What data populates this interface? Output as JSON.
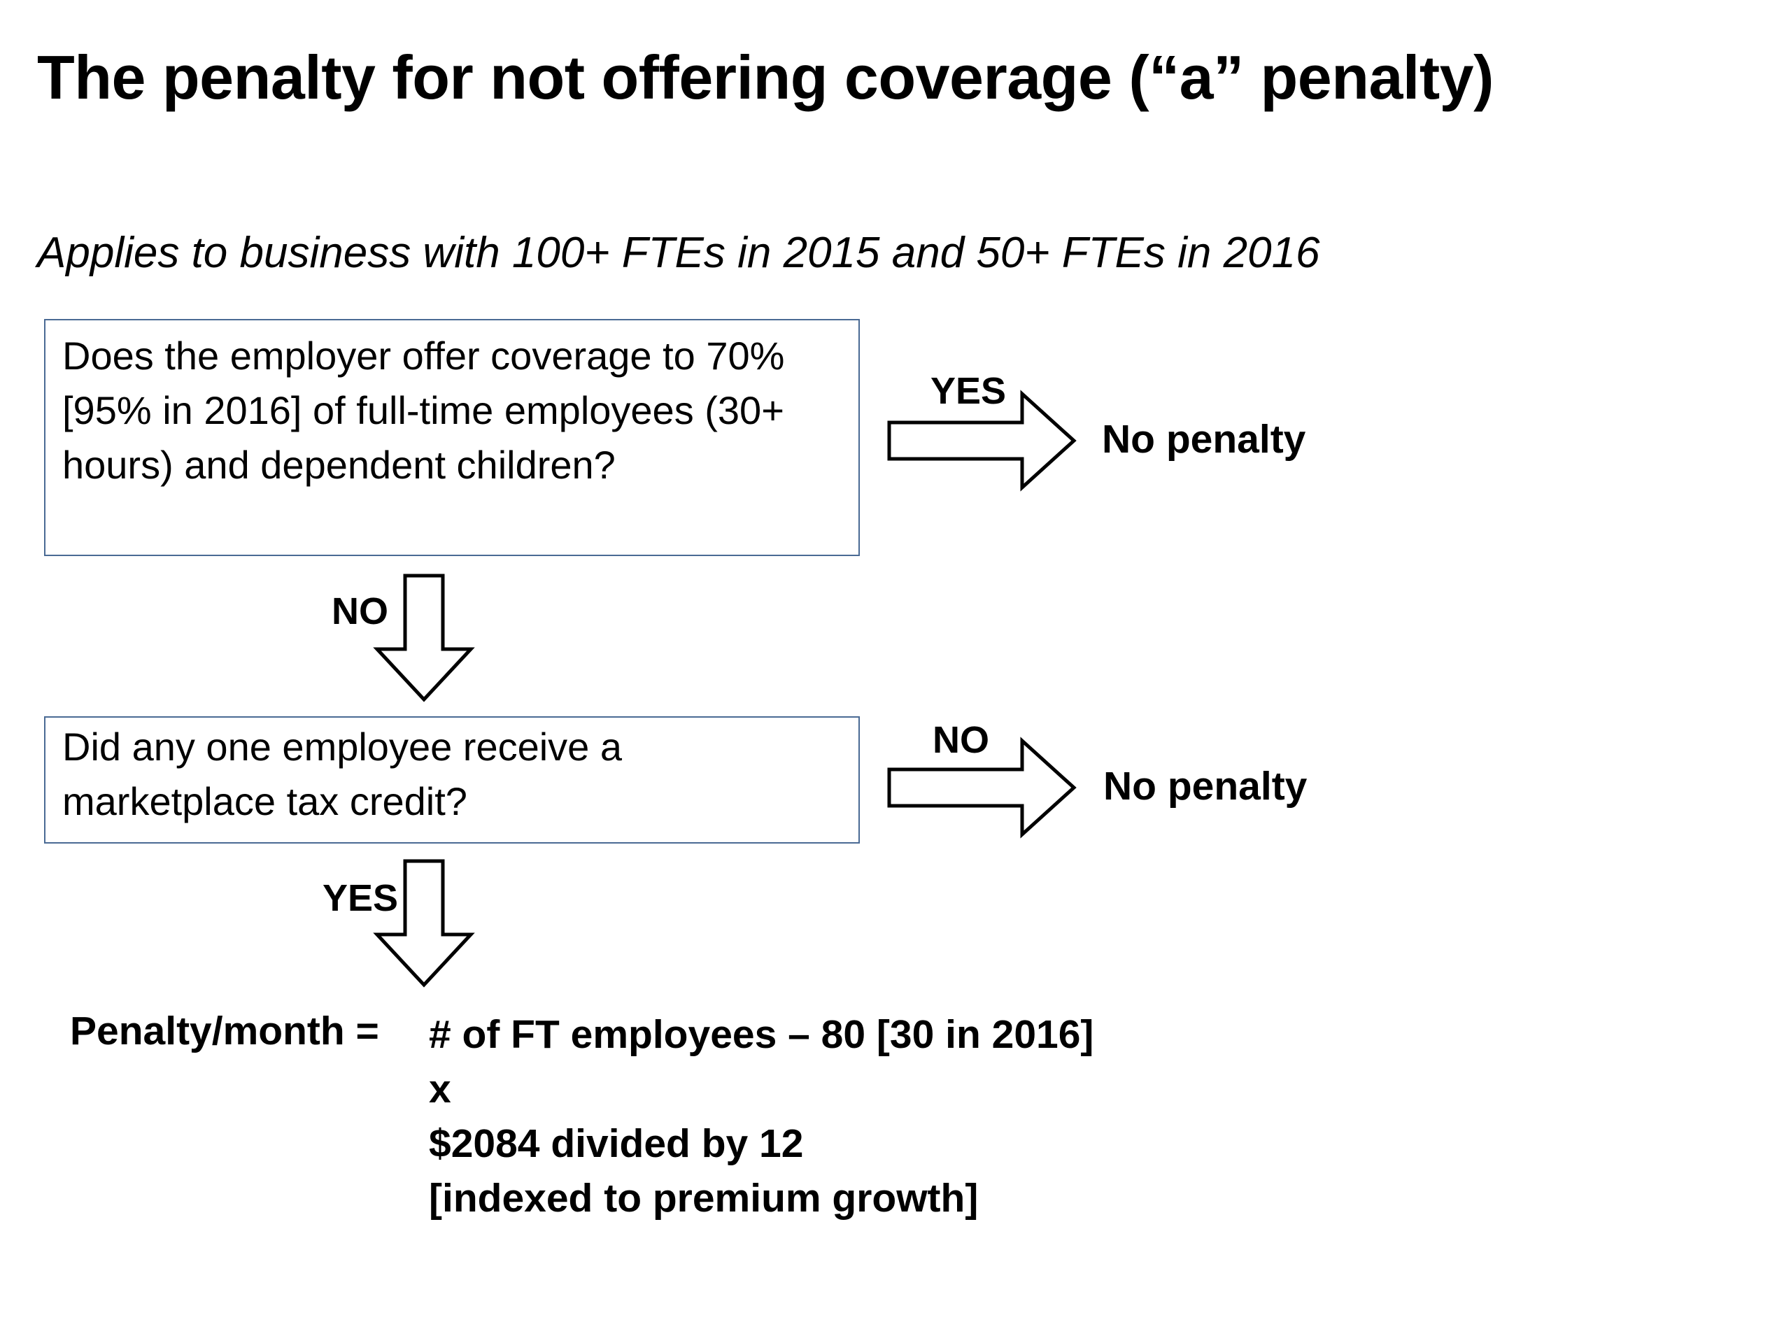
{
  "title": "The penalty for not offering coverage (“a” penalty)",
  "subtitle": "Applies to business with 100+ FTEs in 2015 and 50+ FTEs in 2016",
  "question1": {
    "lines": [
      "Does the employer offer coverage to 70%",
      "[95% in 2016] of full-time employees (30+",
      "hours) and dependent children?"
    ]
  },
  "question2": {
    "lines": [
      "Did any one employee receive a",
      "marketplace tax credit?"
    ]
  },
  "arrow_labels": {
    "q1_right": "YES",
    "q1_down": "NO",
    "q2_right": "NO",
    "q2_down": "YES"
  },
  "outcomes": {
    "q1_right": "No penalty",
    "q2_right": "No penalty"
  },
  "formula": {
    "label": "Penalty/month =",
    "lines": [
      "# of FT employees – 80 [30 in 2016]",
      "x",
      "$2084 divided by 12",
      "[indexed to premium growth]"
    ]
  }
}
